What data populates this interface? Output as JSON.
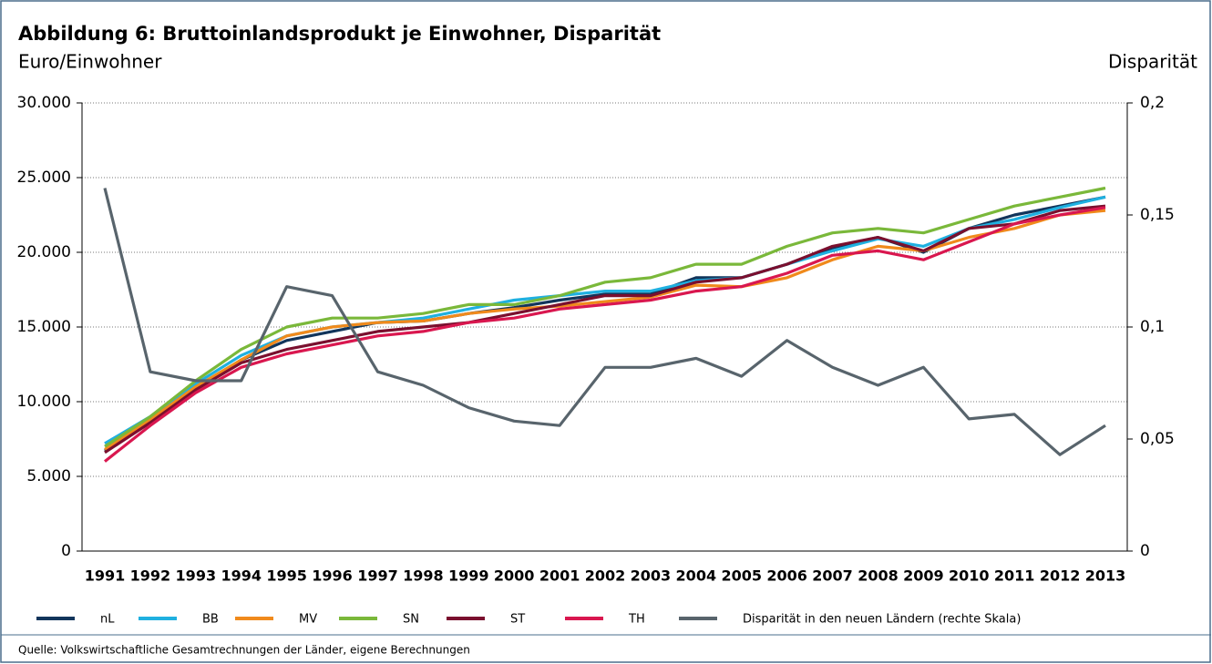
{
  "chart_data": {
    "type": "line",
    "title": "Abbildung 6: Bruttoinlandsprodukt je Einwohner, Disparität",
    "y_label": "Euro/Einwohner",
    "y2_label": "Disparität",
    "source": "Quelle: Volkswirtschaftliche Gesamtrechnungen der Länder, eigene Berechnungen",
    "categories": [
      "1991",
      "1992",
      "1993",
      "1994",
      "1995",
      "1996",
      "1997",
      "1998",
      "1999",
      "2000",
      "2001",
      "2002",
      "2003",
      "2004",
      "2005",
      "2006",
      "2007",
      "2008",
      "2009",
      "2010",
      "2011",
      "2012",
      "2013"
    ],
    "ylim": [
      0,
      30000
    ],
    "yticks": [
      0,
      {
        "value": 5000,
        "label": "5.000"
      },
      {
        "value": 10000,
        "label": "10.000"
      },
      {
        "value": 15000,
        "label": "15.000"
      },
      {
        "value": 20000,
        "label": "20.000"
      },
      {
        "value": 25000,
        "label": "25.000"
      },
      {
        "value": 30000,
        "label": "30.000"
      }
    ],
    "y2lim": [
      0,
      0.2
    ],
    "y2ticks": [
      0,
      {
        "value": 0.05,
        "label": "0,05"
      },
      {
        "value": 0.1,
        "label": "0,1"
      },
      {
        "value": 0.15,
        "label": "0,15"
      },
      {
        "value": 0.2,
        "label": "0,2"
      }
    ],
    "grid": true,
    "legend": "bottom",
    "series": [
      {
        "name": "nL",
        "color": "#12355b",
        "values": [
          6700,
          8700,
          10900,
          12800,
          14100,
          14700,
          15300,
          15400,
          15900,
          16300,
          16800,
          17200,
          17200,
          18300,
          18300,
          19200,
          20300,
          21000,
          20000,
          21600,
          22500,
          23100,
          23700
        ]
      },
      {
        "name": "BB",
        "color": "#1fb0e0",
        "values": [
          7200,
          9000,
          11200,
          13100,
          14400,
          15000,
          15300,
          15600,
          16200,
          16800,
          17100,
          17400,
          17400,
          18100,
          18300,
          19200,
          20100,
          20900,
          20400,
          21600,
          22200,
          23000,
          23700
        ]
      },
      {
        "name": "MV",
        "color": "#f08a1c",
        "values": [
          6800,
          8800,
          11000,
          12800,
          14400,
          15000,
          15300,
          15400,
          15900,
          16200,
          16400,
          16700,
          17000,
          17800,
          17700,
          18300,
          19500,
          20400,
          20100,
          21000,
          21600,
          22500,
          22800
        ]
      },
      {
        "name": "SN",
        "color": "#7ab83a",
        "values": [
          7000,
          9000,
          11400,
          13500,
          15000,
          15600,
          15600,
          15900,
          16500,
          16500,
          17100,
          18000,
          18300,
          19200,
          19200,
          20400,
          21300,
          21600,
          21300,
          22200,
          23100,
          23700,
          24300
        ]
      },
      {
        "name": "ST",
        "color": "#7a0f2e",
        "values": [
          6600,
          8600,
          10800,
          12600,
          13500,
          14100,
          14700,
          15000,
          15300,
          15900,
          16500,
          17100,
          17100,
          18000,
          18300,
          19200,
          20400,
          21000,
          20100,
          21600,
          21900,
          22800,
          23100
        ]
      },
      {
        "name": "TH",
        "color": "#d9174f",
        "values": [
          6000,
          8400,
          10600,
          12300,
          13200,
          13800,
          14400,
          14700,
          15300,
          15600,
          16200,
          16500,
          16800,
          17400,
          17700,
          18600,
          19800,
          20100,
          19500,
          20700,
          21900,
          22500,
          23000
        ]
      },
      {
        "name": "Disparität in den neuen Ländern (rechte Skala)",
        "color": "#58646c",
        "axis": "y2",
        "values": [
          0.162,
          0.08,
          0.076,
          0.076,
          0.118,
          0.114,
          0.08,
          0.074,
          0.064,
          0.058,
          0.056,
          0.082,
          0.082,
          0.086,
          0.078,
          0.094,
          0.082,
          0.074,
          0.082,
          0.059,
          0.061,
          0.043,
          0.056
        ]
      }
    ]
  }
}
